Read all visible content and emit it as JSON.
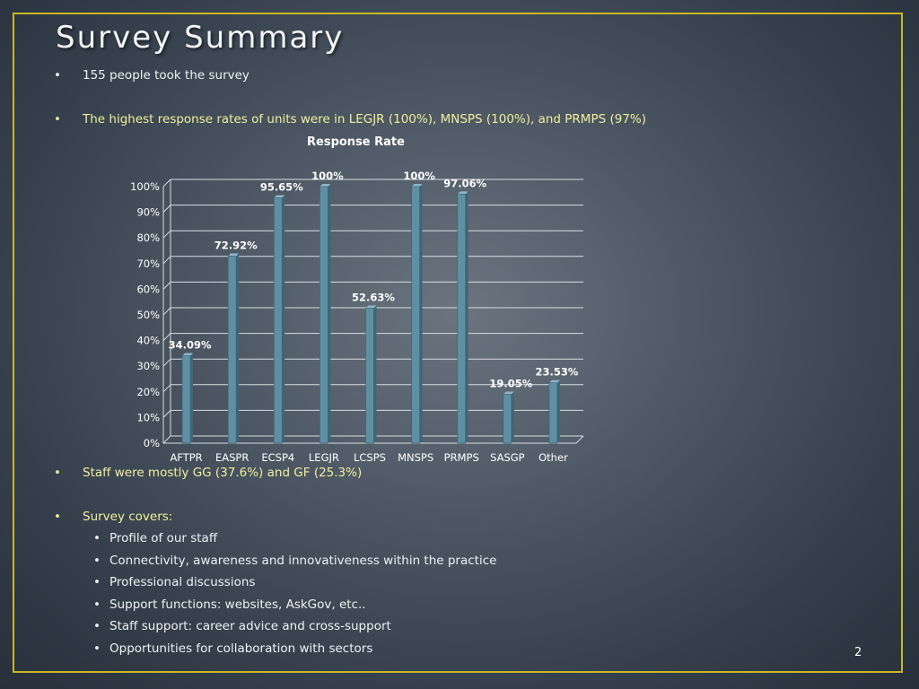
{
  "slide": {
    "title": "Survey Summary",
    "page_number": "2",
    "bullets": {
      "b1": "155 people took the survey",
      "b2": "The highest response rates of units were in LEGJR (100%), MNSPS (100%), and PRMPS (97%)",
      "b3": "Staff were mostly GG (37.6%) and GF (25.3%)",
      "b4": "Survey covers:"
    },
    "sub_bullets": [
      "Profile of our staff",
      "Connectivity, awareness and innovativeness within the practice",
      "Professional discussions",
      "Support functions: websites, AskGov, etc..",
      "Staff support: career advice and cross-support",
      "Opportunities for collaboration with sectors"
    ],
    "bullet_glyph": "•",
    "colors": {
      "frame": "#c8b824",
      "bar": "#5f8fa3",
      "bullet_yellow_text": "#f0ee9c"
    }
  },
  "chart_data": {
    "type": "bar",
    "title": "Response Rate",
    "categories": [
      "AFTPR",
      "EASPR",
      "ECSP4",
      "LEGJR",
      "LCSPS",
      "MNSPS",
      "PRMPS",
      "SASGP",
      "Other"
    ],
    "values": [
      34.09,
      72.92,
      95.65,
      100,
      52.63,
      100,
      97.06,
      19.05,
      23.53
    ],
    "data_labels": [
      "34.09%",
      "72.92%",
      "95.65%",
      "100%",
      "52.63%",
      "100%",
      "97.06%",
      "19.05%",
      "23.53%"
    ],
    "y_ticks": [
      "0%",
      "10%",
      "20%",
      "30%",
      "40%",
      "50%",
      "60%",
      "70%",
      "80%",
      "90%",
      "100%"
    ],
    "ylim": [
      0,
      100
    ],
    "grid": true,
    "legend": "none"
  }
}
